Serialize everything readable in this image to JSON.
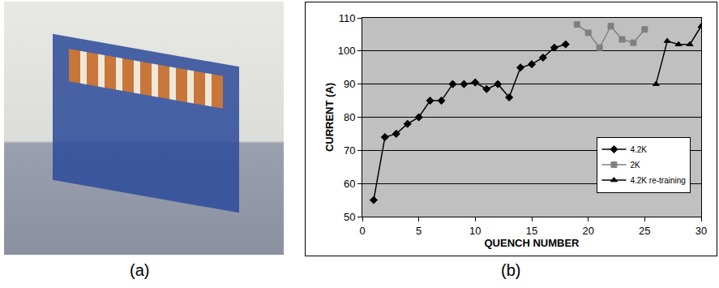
{
  "captions": [
    "(a)",
    "(b)"
  ],
  "chart_data": {
    "type": "line",
    "x_label": "QUENCH NUMBER",
    "y_label": "CURRENT (A)",
    "xlim": [
      0,
      30
    ],
    "xticks": [
      0,
      5,
      10,
      15,
      20,
      25,
      30
    ],
    "ylim": [
      50,
      110
    ],
    "yticks": [
      50,
      60,
      70,
      80,
      90,
      100,
      110
    ],
    "grid": "y",
    "legend": "lower right",
    "series": [
      {
        "name": "4.2K",
        "color": "#000000",
        "marker": "diamond",
        "line_style": "solid",
        "x": [
          1,
          2,
          3,
          4,
          5,
          6,
          7,
          8,
          9,
          10,
          11,
          12,
          13,
          14,
          15,
          16,
          17,
          18
        ],
        "values": [
          55,
          74,
          75,
          78,
          80,
          85,
          85,
          90,
          90,
          90.5,
          88.5,
          90,
          86,
          95,
          96,
          98,
          101,
          102
        ]
      },
      {
        "name": "2K",
        "color": "#808080",
        "marker": "square",
        "line_style": "solid",
        "x": [
          19,
          20,
          21,
          22,
          23,
          24,
          25
        ],
        "values": [
          108,
          105.5,
          101,
          107.5,
          103.5,
          102.5,
          106.5
        ]
      },
      {
        "name": "4.2K re-training",
        "color": "#000000",
        "marker": "triangle-up",
        "line_style": "solid",
        "x": [
          26,
          27,
          28,
          29,
          30
        ],
        "values": [
          90,
          103,
          102,
          102,
          107.5
        ]
      }
    ]
  }
}
